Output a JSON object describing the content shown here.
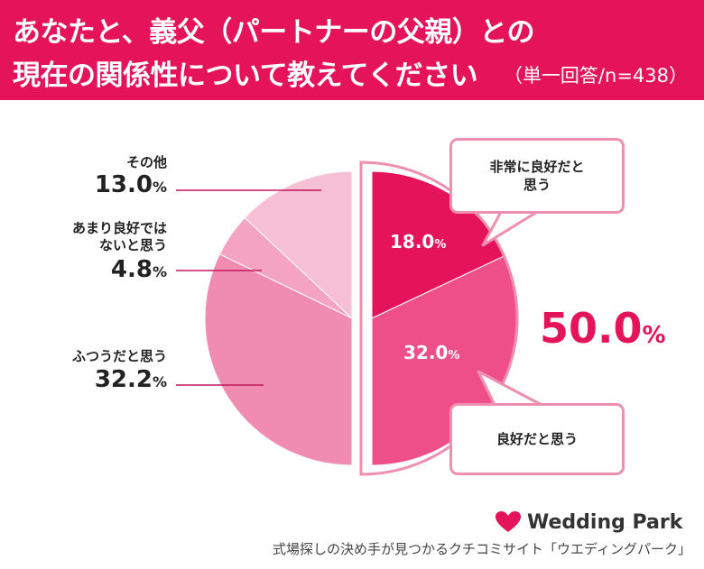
{
  "header": {
    "title_line1": "あなたと、義父（パートナーの父親）との",
    "title_line2": "現在の関係性について教えてください",
    "subtitle": "（単一回答/n=438）"
  },
  "chart_data": {
    "type": "pie",
    "slices": [
      {
        "label": "非常に良好だと思う",
        "value": 18.0,
        "display": "18.0",
        "color": "#e4135a"
      },
      {
        "label": "良好だと思う",
        "value": 32.0,
        "display": "32.0",
        "color": "#ef4f88"
      },
      {
        "label": "ふつうだと思う",
        "value": 32.2,
        "display": "32.2",
        "color": "#f08cb0"
      },
      {
        "label": "あまり良好ではないと思う",
        "value": 4.8,
        "display": "4.8",
        "color": "#f4a3c0"
      },
      {
        "label": "その他",
        "value": 13.0,
        "display": "13.0",
        "color": "#f7bfd3"
      }
    ],
    "unit": "%",
    "combined_total": "50.0",
    "combined_group": [
      "非常に良好だと思う",
      "良好だと思う"
    ]
  },
  "labels": {
    "other_name": "その他",
    "not_good_line1": "あまり良好では",
    "not_good_line2": "ないと思う",
    "normal_name": "ふつうだと思う",
    "very_good_line1": "非常に良好だと",
    "very_good_line2": "思う",
    "good_name": "良好だと思う"
  },
  "brand": {
    "logo_text": "Wedding Park",
    "footer": "式場探しの決め手が見つかるクチコミサイト「ウエディングパーク」",
    "heart_color": "#e4135a"
  }
}
